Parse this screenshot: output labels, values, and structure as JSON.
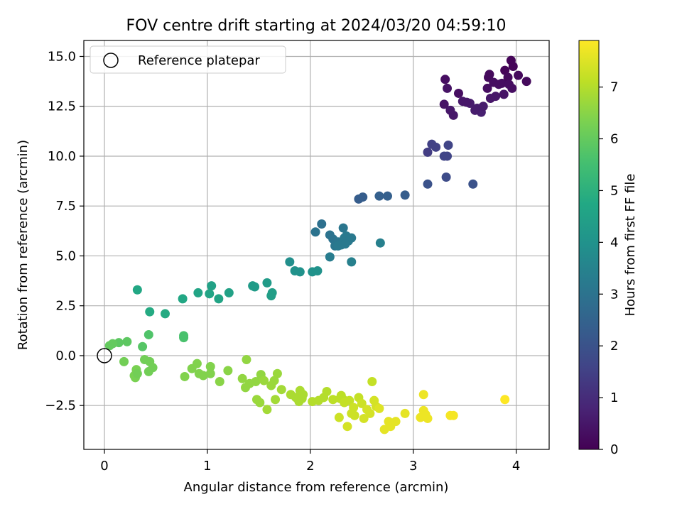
{
  "chart_data": {
    "type": "scatter",
    "title": "FOV centre drift starting at 2024/03/20 04:59:10",
    "xlabel": "Angular distance from reference (arcmin)",
    "ylabel": "Rotation from reference (arcmin)",
    "xlim": [
      -0.2,
      4.32
    ],
    "ylim": [
      -4.7,
      15.8
    ],
    "xticks": [
      0,
      1,
      2,
      3,
      4
    ],
    "xtick_labels": [
      "0",
      "1",
      "2",
      "3",
      "4"
    ],
    "yticks": [
      -2.5,
      0.0,
      2.5,
      5.0,
      7.5,
      10.0,
      12.5,
      15.0
    ],
    "ytick_labels": [
      "−2.5",
      "0.0",
      "2.5",
      "5.0",
      "7.5",
      "10.0",
      "12.5",
      "15.0"
    ],
    "grid": true,
    "legend": {
      "placement": "top-left",
      "entries": [
        "Reference platepar"
      ]
    },
    "colormap": "viridis",
    "colorbar": {
      "label": "Hours from first FF file",
      "range": [
        0,
        7.9
      ],
      "ticks": [
        0,
        1,
        2,
        3,
        4,
        5,
        6,
        7
      ],
      "tick_labels": [
        "0",
        "1",
        "2",
        "3",
        "4",
        "5",
        "6",
        "7"
      ]
    },
    "reference_point": {
      "x": 0,
      "y": 0
    },
    "point_columns": [
      "x_arcmin",
      "y_arcmin",
      "hours"
    ],
    "points": [
      [
        3.31,
        13.85,
        0.3
      ],
      [
        3.33,
        13.4,
        0.4
      ],
      [
        3.39,
        12.05,
        0.5
      ],
      [
        3.36,
        12.3,
        0.5
      ],
      [
        3.3,
        12.6,
        0.4
      ],
      [
        3.44,
        13.15,
        0.3
      ],
      [
        3.48,
        12.75,
        0.5
      ],
      [
        3.55,
        12.65,
        0.6
      ],
      [
        3.62,
        12.4,
        0.6
      ],
      [
        3.66,
        12.2,
        0.7
      ],
      [
        3.68,
        12.5,
        0.6
      ],
      [
        3.72,
        13.4,
        0.3
      ],
      [
        3.73,
        13.95,
        0.2
      ],
      [
        3.74,
        14.1,
        0.2
      ],
      [
        3.78,
        13.7,
        0.3
      ],
      [
        3.8,
        13.0,
        0.5
      ],
      [
        3.83,
        13.6,
        0.3
      ],
      [
        3.86,
        13.65,
        0.3
      ],
      [
        3.88,
        13.1,
        0.4
      ],
      [
        3.89,
        14.3,
        0.1
      ],
      [
        3.92,
        13.95,
        0.2
      ],
      [
        3.93,
        13.6,
        0.3
      ],
      [
        3.95,
        14.8,
        0.1
      ],
      [
        3.97,
        14.5,
        0.1
      ],
      [
        3.96,
        13.4,
        0.3
      ],
      [
        4.02,
        14.05,
        0.2
      ],
      [
        4.1,
        13.75,
        0.2
      ],
      [
        3.75,
        12.9,
        0.5
      ],
      [
        3.6,
        12.3,
        0.6
      ],
      [
        3.52,
        12.7,
        0.5
      ],
      [
        3.14,
        10.2,
        1.4
      ],
      [
        3.18,
        10.6,
        1.5
      ],
      [
        3.22,
        10.45,
        1.5
      ],
      [
        3.3,
        10.0,
        1.6
      ],
      [
        3.34,
        10.55,
        1.6
      ],
      [
        3.33,
        10.0,
        1.6
      ],
      [
        3.32,
        8.95,
        1.8
      ],
      [
        3.14,
        8.6,
        2.0
      ],
      [
        3.58,
        8.6,
        2.0
      ],
      [
        2.47,
        7.85,
        2.3
      ],
      [
        2.51,
        7.95,
        2.3
      ],
      [
        2.67,
        8.0,
        2.4
      ],
      [
        2.75,
        8.0,
        2.4
      ],
      [
        2.92,
        8.05,
        2.3
      ],
      [
        2.11,
        6.6,
        2.9
      ],
      [
        2.05,
        6.2,
        3.0
      ],
      [
        2.19,
        6.05,
        3.0
      ],
      [
        2.22,
        5.85,
        3.0
      ],
      [
        2.24,
        5.5,
        3.1
      ],
      [
        2.27,
        5.7,
        3.1
      ],
      [
        2.3,
        5.55,
        3.2
      ],
      [
        2.32,
        6.4,
        3.1
      ],
      [
        2.33,
        5.9,
        3.2
      ],
      [
        2.35,
        6.0,
        3.2
      ],
      [
        2.37,
        5.75,
        3.2
      ],
      [
        2.4,
        5.9,
        3.2
      ],
      [
        2.19,
        4.95,
        3.3
      ],
      [
        2.4,
        4.7,
        3.4
      ],
      [
        2.68,
        5.65,
        3.4
      ],
      [
        2.27,
        5.5,
        3.2
      ],
      [
        2.34,
        5.6,
        3.2
      ],
      [
        1.8,
        4.7,
        3.9
      ],
      [
        1.85,
        4.25,
        4.0
      ],
      [
        1.9,
        4.2,
        4.0
      ],
      [
        2.02,
        4.2,
        4.0
      ],
      [
        2.07,
        4.25,
        4.0
      ],
      [
        1.44,
        3.5,
        4.3
      ],
      [
        1.46,
        3.45,
        4.3
      ],
      [
        1.58,
        3.65,
        4.3
      ],
      [
        1.62,
        3.0,
        4.4
      ],
      [
        1.63,
        3.15,
        4.4
      ],
      [
        1.21,
        3.15,
        4.5
      ],
      [
        1.11,
        2.85,
        4.6
      ],
      [
        1.04,
        3.5,
        4.5
      ],
      [
        1.02,
        3.1,
        4.6
      ],
      [
        0.91,
        3.15,
        4.6
      ],
      [
        0.76,
        2.85,
        4.7
      ],
      [
        0.59,
        2.1,
        4.8
      ],
      [
        0.44,
        2.2,
        4.8
      ],
      [
        0.32,
        3.3,
        4.7
      ],
      [
        0.77,
        1.0,
        5.6
      ],
      [
        0.77,
        0.9,
        5.6
      ],
      [
        0.43,
        1.05,
        5.7
      ],
      [
        0.37,
        0.45,
        5.8
      ],
      [
        0.22,
        0.7,
        5.9
      ],
      [
        0.14,
        0.65,
        5.9
      ],
      [
        0.08,
        0.6,
        6.0
      ],
      [
        0.05,
        0.5,
        6.0
      ],
      [
        0.19,
        -0.3,
        6.2
      ],
      [
        0.29,
        -1.0,
        6.3
      ],
      [
        0.3,
        -1.1,
        6.3
      ],
      [
        0.31,
        -0.7,
        6.3
      ],
      [
        0.32,
        -0.9,
        6.2
      ],
      [
        0.39,
        -0.2,
        6.2
      ],
      [
        0.43,
        -0.8,
        6.2
      ],
      [
        0.44,
        -0.3,
        6.2
      ],
      [
        0.47,
        -0.6,
        6.2
      ],
      [
        0.78,
        -1.05,
        6.4
      ],
      [
        0.85,
        -0.65,
        6.4
      ],
      [
        0.9,
        -0.4,
        6.4
      ],
      [
        0.92,
        -0.9,
        6.4
      ],
      [
        0.96,
        -1.0,
        6.4
      ],
      [
        1.03,
        -0.55,
        6.4
      ],
      [
        1.03,
        -0.9,
        6.4
      ],
      [
        1.12,
        -1.3,
        6.5
      ],
      [
        1.2,
        -0.75,
        6.5
      ],
      [
        1.34,
        -1.15,
        6.6
      ],
      [
        1.37,
        -1.6,
        6.6
      ],
      [
        1.38,
        -0.2,
        6.6
      ],
      [
        1.41,
        -1.4,
        6.6
      ],
      [
        1.47,
        -1.3,
        6.6
      ],
      [
        1.48,
        -2.2,
        6.7
      ],
      [
        1.51,
        -2.35,
        6.7
      ],
      [
        1.52,
        -0.95,
        6.6
      ],
      [
        1.55,
        -1.25,
        6.7
      ],
      [
        1.58,
        -2.7,
        6.8
      ],
      [
        1.62,
        -1.5,
        6.7
      ],
      [
        1.65,
        -1.25,
        6.7
      ],
      [
        1.66,
        -2.2,
        6.8
      ],
      [
        1.68,
        -0.9,
        6.7
      ],
      [
        1.72,
        -1.7,
        6.8
      ],
      [
        1.81,
        -1.95,
        6.9
      ],
      [
        1.86,
        -2.1,
        6.9
      ],
      [
        1.89,
        -2.3,
        6.9
      ],
      [
        1.9,
        -1.75,
        6.9
      ],
      [
        1.92,
        -2.15,
        6.9
      ],
      [
        1.93,
        -1.95,
        6.9
      ],
      [
        2.02,
        -2.3,
        7.0
      ],
      [
        2.08,
        -2.25,
        7.0
      ],
      [
        2.13,
        -2.1,
        7.0
      ],
      [
        2.16,
        -1.8,
        7.0
      ],
      [
        2.22,
        -2.2,
        7.1
      ],
      [
        2.28,
        -3.1,
        7.3
      ],
      [
        2.29,
        -2.15,
        7.1
      ],
      [
        2.3,
        -2.0,
        7.1
      ],
      [
        2.32,
        -2.2,
        7.1
      ],
      [
        2.33,
        -2.35,
        7.2
      ],
      [
        2.36,
        -3.55,
        7.4
      ],
      [
        2.38,
        -2.25,
        7.2
      ],
      [
        2.4,
        -2.9,
        7.3
      ],
      [
        2.42,
        -2.6,
        7.3
      ],
      [
        2.43,
        -3.0,
        7.3
      ],
      [
        2.47,
        -2.1,
        7.2
      ],
      [
        2.5,
        -2.4,
        7.3
      ],
      [
        2.52,
        -3.15,
        7.4
      ],
      [
        2.55,
        -2.7,
        7.4
      ],
      [
        2.58,
        -2.9,
        7.4
      ],
      [
        2.6,
        -1.3,
        7.2
      ],
      [
        2.62,
        -2.25,
        7.4
      ],
      [
        2.64,
        -2.55,
        7.4
      ],
      [
        2.67,
        -2.65,
        7.5
      ],
      [
        2.72,
        -3.7,
        7.6
      ],
      [
        2.76,
        -3.3,
        7.6
      ],
      [
        2.78,
        -3.55,
        7.6
      ],
      [
        2.83,
        -3.3,
        7.6
      ],
      [
        2.92,
        -2.9,
        7.6
      ],
      [
        3.07,
        -3.1,
        7.7
      ],
      [
        3.1,
        -2.75,
        7.7
      ],
      [
        3.1,
        -1.95,
        7.7
      ],
      [
        3.12,
        -2.95,
        7.7
      ],
      [
        3.14,
        -3.15,
        7.7
      ],
      [
        3.36,
        -3.0,
        7.8
      ],
      [
        3.39,
        -3.0,
        7.8
      ],
      [
        3.89,
        -2.2,
        7.9
      ]
    ]
  }
}
